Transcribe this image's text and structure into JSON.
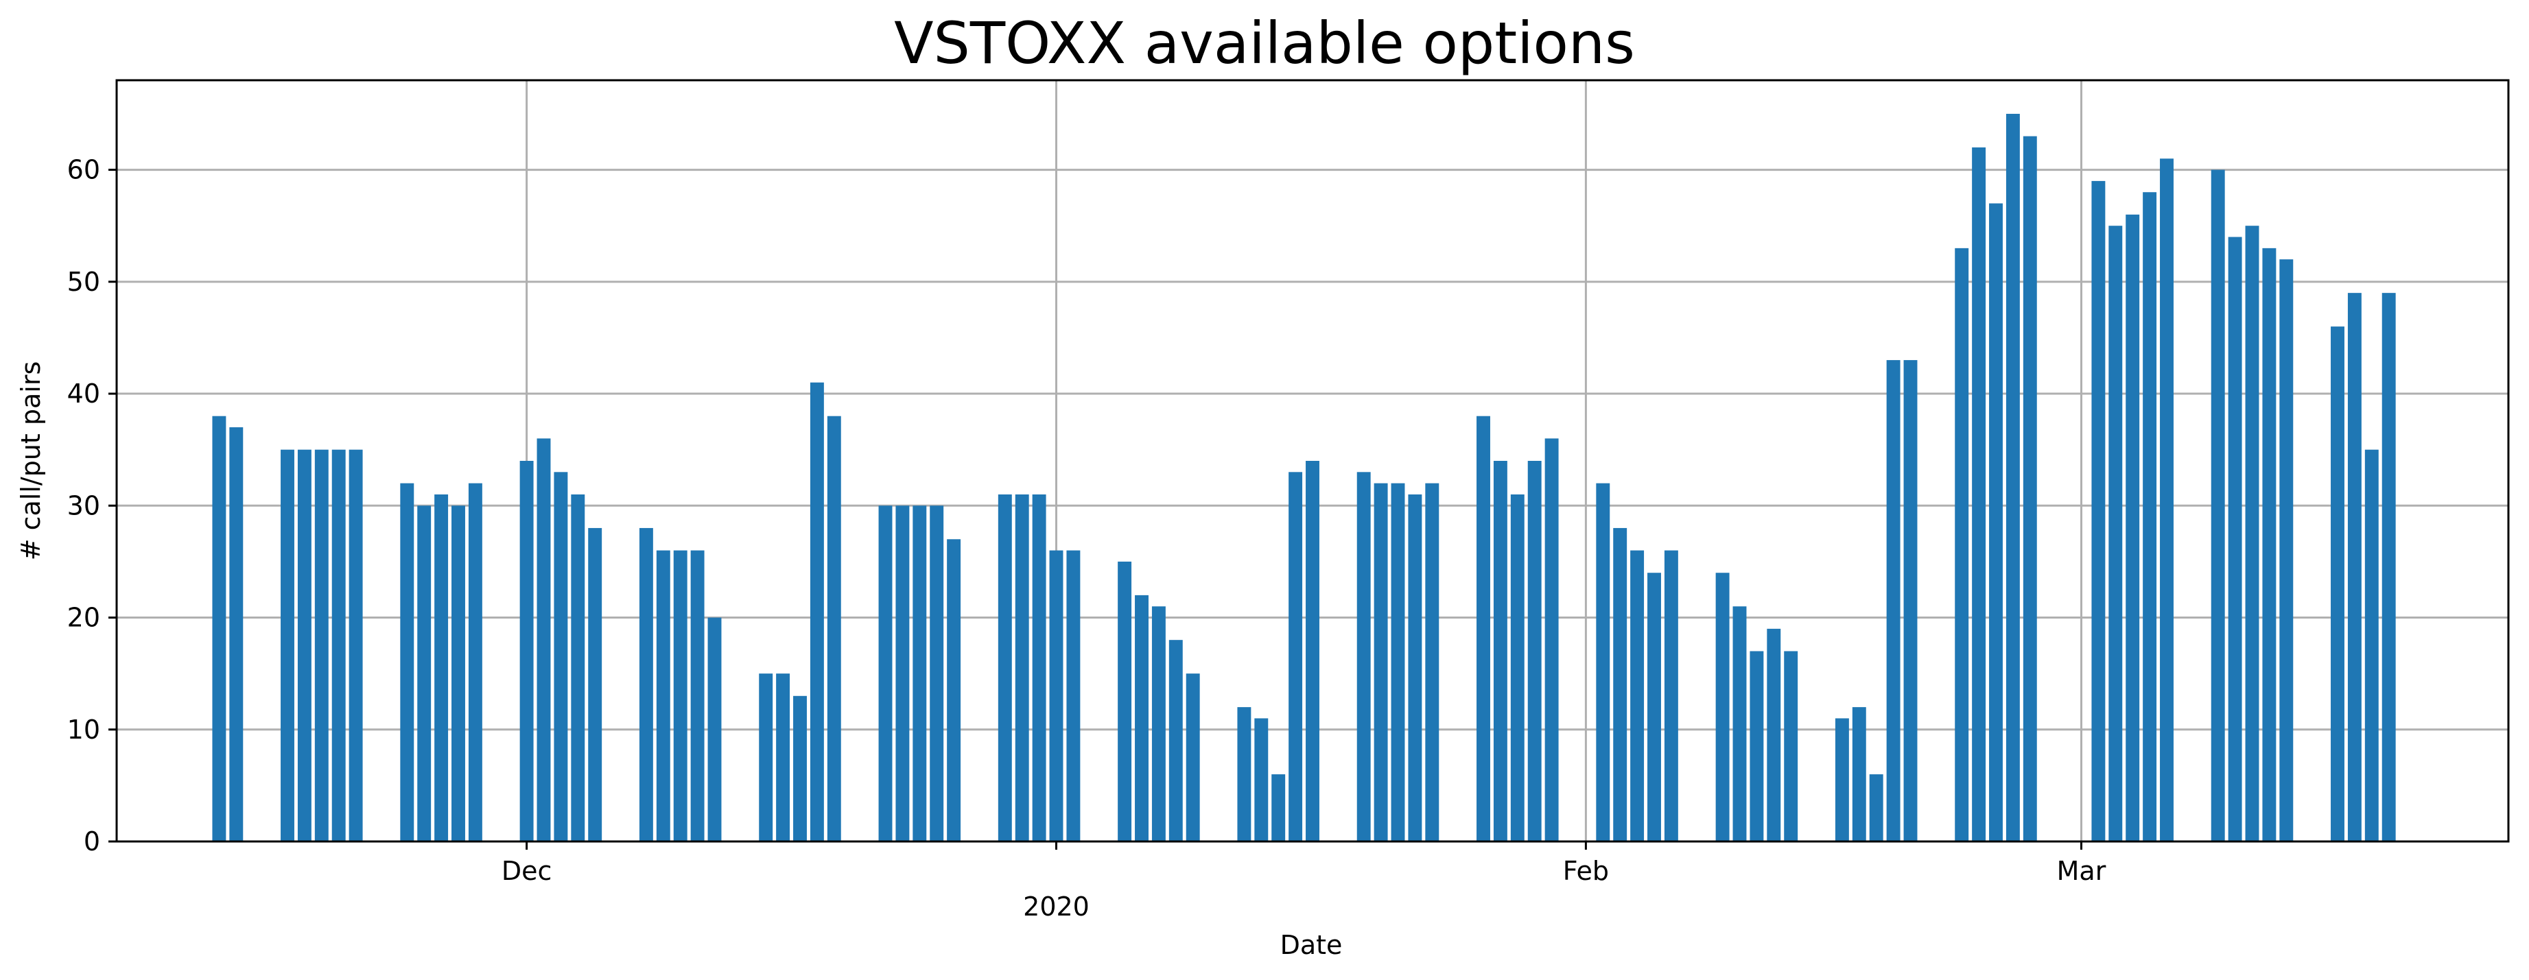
{
  "chart_data": {
    "type": "bar",
    "title": "VSTOXX available options",
    "xlabel": "Date",
    "ylabel": "# call/put pairs",
    "ylim": [
      0,
      68
    ],
    "yticks": [
      0,
      10,
      20,
      30,
      40,
      50,
      60
    ],
    "xlim": [
      "2019-11-07",
      "2020-03-26"
    ],
    "xticks": [
      {
        "date": "2019-12-01",
        "label": "Dec"
      },
      {
        "date": "2020-01-01",
        "label": ""
      },
      {
        "date": "2020-02-01",
        "label": "Feb"
      },
      {
        "date": "2020-03-01",
        "label": "Mar"
      }
    ],
    "xticks_secondary": [
      {
        "date": "2020-01-01",
        "label": "2020"
      }
    ],
    "grid": true,
    "color": "#1f77b4",
    "dates": [
      "2019-11-13",
      "2019-11-14",
      "2019-11-17",
      "2019-11-18",
      "2019-11-19",
      "2019-11-20",
      "2019-11-21",
      "2019-11-24",
      "2019-11-25",
      "2019-11-26",
      "2019-11-27",
      "2019-11-28",
      "2019-12-01",
      "2019-12-02",
      "2019-12-03",
      "2019-12-04",
      "2019-12-05",
      "2019-12-08",
      "2019-12-09",
      "2019-12-10",
      "2019-12-11",
      "2019-12-12",
      "2019-12-15",
      "2019-12-16",
      "2019-12-17",
      "2019-12-18",
      "2019-12-19",
      "2019-12-22",
      "2019-12-23",
      "2019-12-24",
      "2019-12-25",
      "2019-12-26",
      "2019-12-29",
      "2019-12-30",
      "2019-12-31",
      "2020-01-01",
      "2020-01-02",
      "2020-01-05",
      "2020-01-06",
      "2020-01-07",
      "2020-01-08",
      "2020-01-09",
      "2020-01-12",
      "2020-01-13",
      "2020-01-14",
      "2020-01-15",
      "2020-01-16",
      "2020-01-19",
      "2020-01-20",
      "2020-01-21",
      "2020-01-22",
      "2020-01-23",
      "2020-01-26",
      "2020-01-27",
      "2020-01-28",
      "2020-01-29",
      "2020-01-30",
      "2020-02-02",
      "2020-02-03",
      "2020-02-04",
      "2020-02-05",
      "2020-02-06",
      "2020-02-09",
      "2020-02-10",
      "2020-02-11",
      "2020-02-12",
      "2020-02-13",
      "2020-02-16",
      "2020-02-17",
      "2020-02-18",
      "2020-02-19",
      "2020-02-20",
      "2020-02-23",
      "2020-02-24",
      "2020-02-25",
      "2020-02-26",
      "2020-02-27",
      "2020-03-02",
      "2020-03-03",
      "2020-03-04",
      "2020-03-05",
      "2020-03-06",
      "2020-03-09",
      "2020-03-10",
      "2020-03-11",
      "2020-03-12",
      "2020-03-13",
      "2020-03-16",
      "2020-03-17",
      "2020-03-18",
      "2020-03-19"
    ],
    "values": [
      38,
      37,
      35,
      35,
      35,
      35,
      35,
      32,
      30,
      31,
      30,
      32,
      34,
      36,
      33,
      31,
      28,
      28,
      26,
      26,
      26,
      20,
      15,
      15,
      13,
      41,
      38,
      30,
      30,
      30,
      30,
      27,
      31,
      31,
      31,
      26,
      26,
      25,
      22,
      21,
      18,
      15,
      12,
      11,
      6,
      33,
      34,
      33,
      32,
      32,
      31,
      32,
      38,
      34,
      31,
      34,
      36,
      32,
      28,
      26,
      24,
      26,
      24,
      21,
      17,
      19,
      17,
      11,
      12,
      6,
      43,
      43,
      53,
      62,
      57,
      65,
      63,
      59,
      55,
      56,
      58,
      61,
      60,
      54,
      55,
      53,
      52,
      46,
      49,
      35,
      49
    ]
  }
}
